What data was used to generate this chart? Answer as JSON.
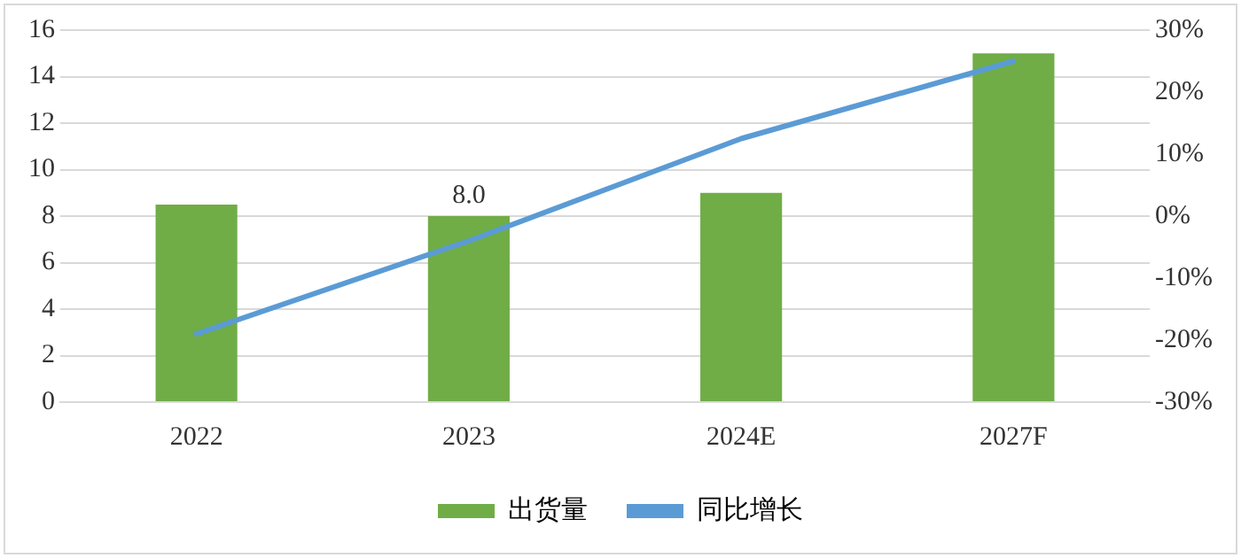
{
  "chart_data": {
    "type": "bar",
    "categories": [
      "2022",
      "2023",
      "2024E",
      "2027F"
    ],
    "series": [
      {
        "name": "出货量",
        "color": "#70ad47",
        "values": [
          8.5,
          8.0,
          9.0,
          15.0
        ],
        "value_labels": [
          null,
          "8.0",
          null,
          null
        ]
      },
      {
        "name": "同比增长",
        "type": "line",
        "axis": "y2",
        "color": "#5b9bd5",
        "values": [
          -19,
          -4,
          12.5,
          25
        ]
      }
    ],
    "ylim": [
      0,
      16
    ],
    "yticks": [
      0,
      2,
      4,
      6,
      8,
      10,
      12,
      14,
      16
    ],
    "y2lim": [
      -30,
      30
    ],
    "y2ticks": [
      {
        "value": -30,
        "label": "-30%"
      },
      {
        "value": -20,
        "label": "-20%"
      },
      {
        "value": -10,
        "label": "-10%"
      },
      {
        "value": 0,
        "label": "0%"
      },
      {
        "value": 10,
        "label": "10%"
      },
      {
        "value": 20,
        "label": "20%"
      },
      {
        "value": 30,
        "label": "30%"
      }
    ],
    "grid": "y",
    "legend": "bottom",
    "marker": "none",
    "line_style": "solid"
  }
}
